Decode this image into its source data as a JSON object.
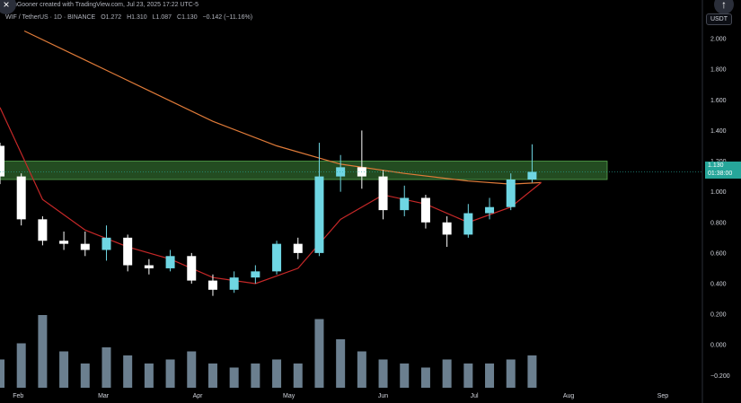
{
  "header": {
    "title_prefix": "N",
    "title_rest": "anGooner created with TradingView.com, Jul 23, 2025 17:22 UTC-5",
    "symbol": "WIF / TetherUS · 1D · BINANCE",
    "ohlc": [
      "O1.272",
      "H1.310",
      "L1.087",
      "C1.130",
      "−0.142 (−11.16%)"
    ]
  },
  "currency_button": "USDT",
  "corner_buttons": {
    "left": "×",
    "right": "↑"
  },
  "price_tag": {
    "price": "1.130",
    "countdown": "01:38:00",
    "color": "#26a69a"
  },
  "colors": {
    "background": "#000000",
    "up": "#6fd6e3",
    "down": "#ffffff",
    "zone": "#3f8a3c",
    "ma_fast": "#c62828",
    "ma_slow": "#e07b39",
    "volume": "#8fa9bf",
    "axis_text": "#d1d4dc",
    "label_bg": "#26a69a"
  },
  "chart_data": {
    "type": "candlestick",
    "y_axis_ticks": [
      "2.000",
      "1.800",
      "1.600",
      "1.400",
      "1.200",
      "1.000",
      "0.800",
      "0.600",
      "0.400",
      "0.200",
      "0.000",
      "−0.200"
    ],
    "ylim": [
      -0.28,
      2.1
    ],
    "x_axis_labels": [
      "Feb",
      "Mar",
      "Apr",
      "May",
      "Jun",
      "Jul",
      "Aug",
      "Sep"
    ],
    "x_start": "2025-01-26",
    "x_end": "2025-09-14",
    "resistance_zone": [
      1.08,
      1.2
    ],
    "last_close": 1.13,
    "ohlc_daily_weekly_approx": [
      {
        "date": "2025-01-26",
        "o": 1.3,
        "h": 1.32,
        "l": 1.05,
        "c": 1.1
      },
      {
        "date": "2025-02-02",
        "o": 1.1,
        "h": 1.12,
        "l": 0.78,
        "c": 0.82
      },
      {
        "date": "2025-02-09",
        "o": 0.82,
        "h": 0.84,
        "l": 0.65,
        "c": 0.68
      },
      {
        "date": "2025-02-16",
        "o": 0.68,
        "h": 0.74,
        "l": 0.62,
        "c": 0.66
      },
      {
        "date": "2025-02-23",
        "o": 0.66,
        "h": 0.74,
        "l": 0.58,
        "c": 0.62
      },
      {
        "date": "2025-03-02",
        "o": 0.62,
        "h": 0.78,
        "l": 0.55,
        "c": 0.7
      },
      {
        "date": "2025-03-09",
        "o": 0.7,
        "h": 0.72,
        "l": 0.48,
        "c": 0.52
      },
      {
        "date": "2025-03-16",
        "o": 0.52,
        "h": 0.56,
        "l": 0.46,
        "c": 0.5
      },
      {
        "date": "2025-03-23",
        "o": 0.5,
        "h": 0.62,
        "l": 0.48,
        "c": 0.58
      },
      {
        "date": "2025-03-30",
        "o": 0.58,
        "h": 0.6,
        "l": 0.4,
        "c": 0.42
      },
      {
        "date": "2025-04-06",
        "o": 0.42,
        "h": 0.46,
        "l": 0.32,
        "c": 0.36
      },
      {
        "date": "2025-04-13",
        "o": 0.36,
        "h": 0.48,
        "l": 0.34,
        "c": 0.44
      },
      {
        "date": "2025-04-20",
        "o": 0.44,
        "h": 0.52,
        "l": 0.4,
        "c": 0.48
      },
      {
        "date": "2025-04-27",
        "o": 0.48,
        "h": 0.68,
        "l": 0.46,
        "c": 0.66
      },
      {
        "date": "2025-05-04",
        "o": 0.66,
        "h": 0.7,
        "l": 0.56,
        "c": 0.6
      },
      {
        "date": "2025-05-11",
        "o": 0.6,
        "h": 1.32,
        "l": 0.58,
        "c": 1.1
      },
      {
        "date": "2025-05-18",
        "o": 1.1,
        "h": 1.24,
        "l": 1.0,
        "c": 1.16
      },
      {
        "date": "2025-05-25",
        "o": 1.16,
        "h": 1.4,
        "l": 1.02,
        "c": 1.1
      },
      {
        "date": "2025-06-01",
        "o": 1.1,
        "h": 1.14,
        "l": 0.82,
        "c": 0.88
      },
      {
        "date": "2025-06-08",
        "o": 0.88,
        "h": 1.04,
        "l": 0.84,
        "c": 0.96
      },
      {
        "date": "2025-06-15",
        "o": 0.96,
        "h": 0.98,
        "l": 0.76,
        "c": 0.8
      },
      {
        "date": "2025-06-22",
        "o": 0.8,
        "h": 0.84,
        "l": 0.64,
        "c": 0.72
      },
      {
        "date": "2025-06-29",
        "o": 0.72,
        "h": 0.92,
        "l": 0.7,
        "c": 0.86
      },
      {
        "date": "2025-07-06",
        "o": 0.86,
        "h": 0.96,
        "l": 0.82,
        "c": 0.9
      },
      {
        "date": "2025-07-13",
        "o": 0.9,
        "h": 1.12,
        "l": 0.88,
        "c": 1.08
      },
      {
        "date": "2025-07-20",
        "o": 1.08,
        "h": 1.31,
        "l": 1.06,
        "c": 1.13
      }
    ],
    "ma_fast_approx": [
      {
        "date": "2025-01-26",
        "v": 1.55
      },
      {
        "date": "2025-02-09",
        "v": 0.95
      },
      {
        "date": "2025-02-23",
        "v": 0.75
      },
      {
        "date": "2025-03-09",
        "v": 0.64
      },
      {
        "date": "2025-03-23",
        "v": 0.56
      },
      {
        "date": "2025-04-06",
        "v": 0.44
      },
      {
        "date": "2025-04-20",
        "v": 0.4
      },
      {
        "date": "2025-05-04",
        "v": 0.5
      },
      {
        "date": "2025-05-18",
        "v": 0.82
      },
      {
        "date": "2025-06-01",
        "v": 0.98
      },
      {
        "date": "2025-06-15",
        "v": 0.92
      },
      {
        "date": "2025-06-29",
        "v": 0.8
      },
      {
        "date": "2025-07-13",
        "v": 0.9
      },
      {
        "date": "2025-07-23",
        "v": 1.06
      }
    ],
    "ma_slow_approx": [
      {
        "date": "2025-02-03",
        "v": 2.05
      },
      {
        "date": "2025-02-23",
        "v": 1.86
      },
      {
        "date": "2025-03-16",
        "v": 1.66
      },
      {
        "date": "2025-04-06",
        "v": 1.46
      },
      {
        "date": "2025-04-27",
        "v": 1.3
      },
      {
        "date": "2025-05-18",
        "v": 1.18
      },
      {
        "date": "2025-06-08",
        "v": 1.12
      },
      {
        "date": "2025-06-29",
        "v": 1.07
      },
      {
        "date": "2025-07-13",
        "v": 1.05
      },
      {
        "date": "2025-07-23",
        "v": 1.06
      }
    ],
    "volume_relative_approx": [
      0.35,
      0.55,
      0.9,
      0.45,
      0.3,
      0.5,
      0.4,
      0.3,
      0.35,
      0.45,
      0.3,
      0.25,
      0.3,
      0.35,
      0.3,
      0.85,
      0.6,
      0.45,
      0.35,
      0.3,
      0.25,
      0.35,
      0.3,
      0.3,
      0.35,
      0.4
    ],
    "grid": false,
    "legend": "none"
  }
}
